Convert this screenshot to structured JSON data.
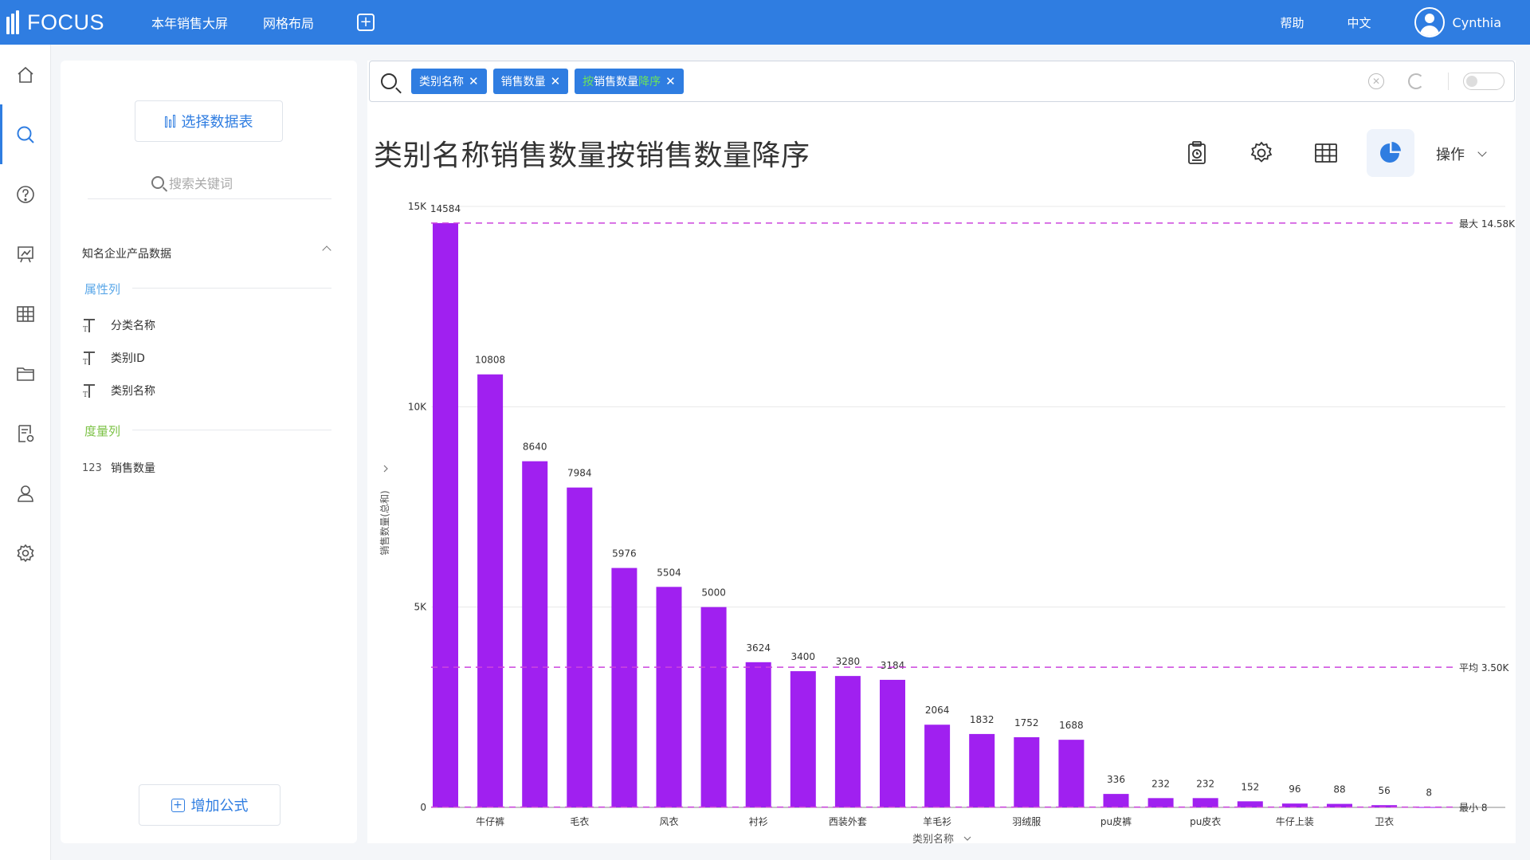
{
  "app": {
    "logo_text": "FOCUS",
    "nav": [
      "本年销售大屏",
      "网格布局"
    ],
    "help": "帮助",
    "language": "中文",
    "user": "Cynthia"
  },
  "rail": [
    "home-icon",
    "search-icon",
    "help-icon",
    "dashboard-icon",
    "table-icon",
    "folder-icon",
    "report-settings-icon",
    "user-icon",
    "settings-icon"
  ],
  "panel": {
    "select_table": "选择数据表",
    "search_placeholder": "搜索关键词",
    "dataset": "知名企业产品数据",
    "attr_group": "属性列",
    "attributes": [
      "分类名称",
      "类别ID",
      "类别名称"
    ],
    "measure_group": "度量列",
    "measure_type": "123",
    "measures": [
      "销售数量"
    ],
    "add_formula": "增加公式"
  },
  "search": {
    "chips": [
      "类别名称",
      "销售数量"
    ],
    "sort_chip": {
      "prefix": "按",
      "main": "销售数量",
      "suffix": "降序"
    }
  },
  "title": "类别名称销售数量按销售数量降序",
  "operations": "操作",
  "colors": {
    "accent": "#2f7de1",
    "bar": "#a020f0",
    "refline": "#cc44dd"
  },
  "chart_data": {
    "type": "bar",
    "xlabel": "类别名称",
    "ylabel": "销售数量(总和)",
    "ylim": [
      0,
      15000
    ],
    "yticks": [
      "0",
      "5K",
      "10K",
      "15K"
    ],
    "categories": [
      "",
      "牛仔裤",
      "",
      "毛衣",
      "",
      "风衣",
      "",
      "衬衫",
      "",
      "西装外套",
      "",
      "羊毛衫",
      "",
      "羽绒服",
      "",
      "pu皮裤",
      "",
      "pu皮衣",
      "",
      "牛仔上装",
      "",
      "卫衣",
      ""
    ],
    "values": [
      14584,
      10808,
      8640,
      7984,
      5976,
      5504,
      5000,
      3624,
      3400,
      3280,
      3184,
      2064,
      1832,
      1752,
      1688,
      336,
      232,
      232,
      152,
      96,
      88,
      56,
      8
    ],
    "reference_lines": [
      {
        "label": "最大 14.58K",
        "value": 14584
      },
      {
        "label": "平均 3.50K",
        "value": 3500
      },
      {
        "label": "最小 8",
        "value": 8
      }
    ]
  }
}
